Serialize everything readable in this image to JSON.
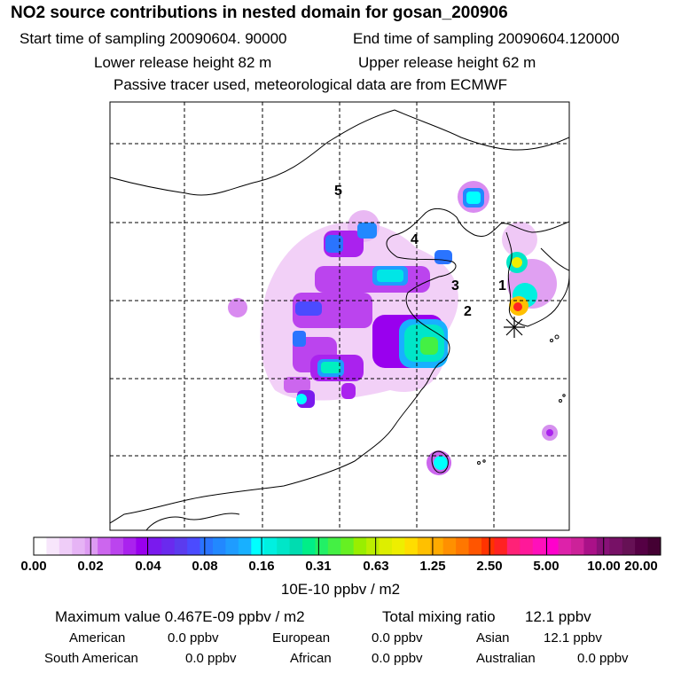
{
  "header": {
    "title": "NO2 source contributions in nested domain for gosan_200906",
    "start_label": "Start time of sampling 20090604. 90000",
    "end_label": "End time of sampling 20090604.120000",
    "lower_label": "Lower release height   82 m",
    "upper_label": "Upper release height   62 m",
    "note": "Passive tracer used, meteorological data are from ECMWF"
  },
  "chart_data": {
    "type": "heatmap",
    "title": "NO2 source contributions in nested domain for gosan_200906",
    "region_labels": [
      "1",
      "2",
      "3",
      "4",
      "5"
    ],
    "receptor": "gosan",
    "colorbar": {
      "ticks": [
        "0.00",
        "0.02",
        "0.04",
        "0.08",
        "0.16",
        "0.31",
        "0.63",
        "1.25",
        "2.50",
        "5.00",
        "10.00",
        "20.00"
      ],
      "unit_label": "10E-10 ppbv / m2",
      "colors": [
        "#ffffff",
        "#f7e6fb",
        "#efcdf8",
        "#e6b4f5",
        "#dd9bf2",
        "#cc66ee",
        "#bb44ee",
        "#aa22ee",
        "#9900ee",
        "#7a1aee",
        "#6a2aee",
        "#5b3bee",
        "#4b4bff",
        "#2a74ff",
        "#2288ff",
        "#1f9cff",
        "#18b0ff",
        "#00ffff",
        "#00f0e0",
        "#00e6c8",
        "#00dcb0",
        "#00ee88",
        "#22f066",
        "#44f044",
        "#66f022",
        "#99ee00",
        "#bbee00",
        "#ddee00",
        "#eeee00",
        "#ffdd00",
        "#ffc000",
        "#ffaa00",
        "#ff9000",
        "#ff7700",
        "#ff5500",
        "#ff3300",
        "#ff2222",
        "#ff2277",
        "#ff1899",
        "#ff10bb",
        "#ff00cc",
        "#dd22aa",
        "#cc2299",
        "#aa1188",
        "#881177",
        "#771166",
        "#661155",
        "#550044",
        "#440033"
      ]
    }
  },
  "stats": {
    "max_label": "Maximum value  0.467E-09 ppbv / m2",
    "total_label": "Total mixing ratio",
    "total_value": "12.1 ppbv",
    "american_label": "American",
    "american_value": "0.0 ppbv",
    "european_label": "European",
    "european_value": "0.0 ppbv",
    "asian_label": "Asian",
    "asian_value": "12.1 ppbv",
    "south_american_label": "South American",
    "south_american_value": "0.0 ppbv",
    "african_label": "African",
    "african_value": "0.0 ppbv",
    "australian_label": "Australian",
    "australian_value": "0.0 ppbv"
  }
}
